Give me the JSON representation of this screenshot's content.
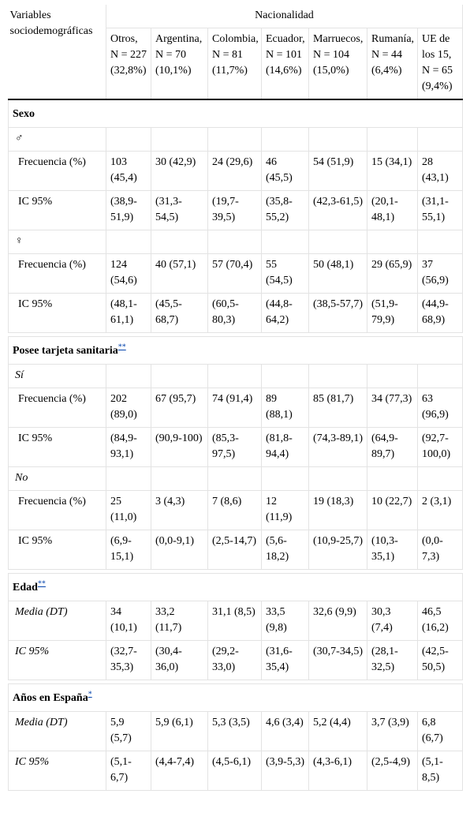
{
  "header": {
    "row_label": "Variables sociodemográficas",
    "group": "Nacionalidad",
    "columns": [
      "Otros, N = 227 (32,8%)",
      "Argentina, N = 70 (10,1%)",
      "Colombia, N = 81 (11,7%)",
      "Ecuador, N = 101 (14,6%)",
      "Marruecos, N = 104 (15,0%)",
      "Rumanía, N = 44 (6,4%)",
      "UE de los 15, N = 65 (9,4%)"
    ]
  },
  "sections": [
    {
      "title": "Sexo",
      "groups": [
        {
          "label": "♂",
          "rows": [
            {
              "label": "Frecuencia (%)",
              "values": [
                "103 (45,4)",
                "30 (42,9)",
                "24 (29,6)",
                "46 (45,5)",
                "54 (51,9)",
                "15 (34,1)",
                "28 (43,1)"
              ]
            },
            {
              "label": "IC 95%",
              "values": [
                "(38,9-51,9)",
                "(31,3-54,5)",
                "(19,7-39,5)",
                "(35,8-55,2)",
                "(42,3-61,5)",
                "(20,1-48,1)",
                "(31,1-55,1)"
              ]
            }
          ]
        },
        {
          "label": "♀",
          "rows": [
            {
              "label": "Frecuencia (%)",
              "values": [
                "124 (54,6)",
                "40 (57,1)",
                "57 (70,4)",
                "55 (54,5)",
                "50 (48,1)",
                "29 (65,9)",
                "37 (56,9)"
              ]
            },
            {
              "label": "IC 95%",
              "values": [
                "(48,1-61,1)",
                "(45,5-68,7)",
                "(60,5-80,3)",
                "(44,8-64,2)",
                "(38,5-57,7)",
                "(51,9-79,9)",
                "(44,9-68,9)"
              ]
            }
          ]
        }
      ]
    },
    {
      "title": "Posee tarjeta sanitaria",
      "note": "**",
      "groups": [
        {
          "label": "Sí",
          "rows": [
            {
              "label": "Frecuencia (%)",
              "values": [
                "202 (89,0)",
                "67 (95,7)",
                "74 (91,4)",
                "89 (88,1)",
                "85 (81,7)",
                "34 (77,3)",
                "63 (96,9)"
              ]
            },
            {
              "label": "IC 95%",
              "values": [
                "(84,9-93,1)",
                "(90,9-100)",
                "(85,3-97,5)",
                "(81,8-94,4)",
                "(74,3-89,1)",
                "(64,9-89,7)",
                "(92,7-100,0)"
              ]
            }
          ]
        },
        {
          "label": "No",
          "rows": [
            {
              "label": "Frecuencia (%)",
              "values": [
                "25 (11,0)",
                "3 (4,3)",
                "7 (8,6)",
                "12 (11,9)",
                "19 (18,3)",
                "10 (22,7)",
                "2 (3,1)"
              ]
            },
            {
              "label": "IC 95%",
              "values": [
                "(6,9-15,1)",
                "(0,0-9,1)",
                "(2,5-14,7)",
                "(5,6-18,2)",
                "(10,9-25,7)",
                "(10,3-35,1)",
                "(0,0-7,3)"
              ]
            }
          ]
        }
      ]
    },
    {
      "title": "Edad",
      "note": "**",
      "rows": [
        {
          "label": "Media (DT)",
          "values": [
            "34 (10,1)",
            "33,2 (11,7)",
            "31,1 (8,5)",
            "33,5 (9,8)",
            "32,6 (9,9)",
            "30,3 (7,4)",
            "46,5 (16,2)"
          ]
        },
        {
          "label": "IC 95%",
          "values": [
            "(32,7-35,3)",
            "(30,4-36,0)",
            "(29,2-33,0)",
            "(31,6-35,4)",
            "(30,7-34,5)",
            "(28,1-32,5)",
            "(42,5-50,5)"
          ]
        }
      ]
    },
    {
      "title": "Años en España",
      "note": "*",
      "rows": [
        {
          "label": "Media (DT)",
          "values": [
            "5,9 (5,7)",
            "5,9 (6,1)",
            "5,3 (3,5)",
            "4,6 (3,4)",
            "5,2 (4,4)",
            "3,7 (3,9)",
            "6,8 (6,7)"
          ]
        },
        {
          "label": "IC 95%",
          "values": [
            "(5,1-6,7)",
            "(4,4-7,4)",
            "(4,5-6,1)",
            "(3,9-5,3)",
            "(4,3-6,1)",
            "(2,5-4,9)",
            "(5,1-8,5)"
          ]
        }
      ]
    }
  ]
}
